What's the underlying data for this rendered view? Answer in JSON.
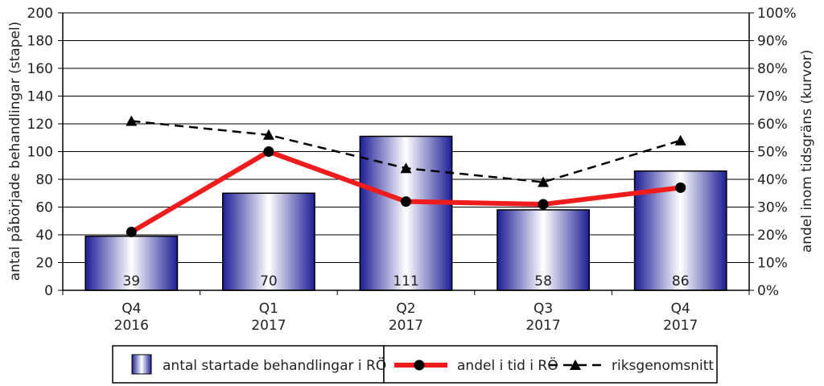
{
  "chart_data": {
    "type": "bar",
    "categories": [
      [
        "Q4",
        "2016"
      ],
      [
        "Q1",
        "2017"
      ],
      [
        "Q2",
        "2017"
      ],
      [
        "Q3",
        "2017"
      ],
      [
        "Q4",
        "2017"
      ]
    ],
    "ylabel": "antal påbörjade behandlingar (stapel)",
    "y2label": "andel inom tidsgräns (kurvor)",
    "ylim": [
      0,
      200
    ],
    "yticks": [
      "0",
      "20",
      "40",
      "60",
      "80",
      "100",
      "120",
      "140",
      "160",
      "180",
      "200"
    ],
    "y2lim": [
      0,
      100
    ],
    "y2ticks": [
      "0%",
      "10%",
      "20%",
      "30%",
      "40%",
      "50%",
      "60%",
      "70%",
      "80%",
      "90%",
      "100%"
    ],
    "grid": true,
    "legend_position": "bottom",
    "series": [
      {
        "name": "antal startade behandlingar i RÖ",
        "type": "bar",
        "axis": "left",
        "values": [
          39,
          70,
          111,
          58,
          86
        ],
        "labels": [
          "39",
          "70",
          "111",
          "58",
          "86"
        ],
        "color": "#2a2a9e"
      },
      {
        "name": "andel i tid i RÖ",
        "type": "line",
        "axis": "right",
        "values": [
          21,
          50,
          32,
          31,
          37
        ],
        "color": "#ee1c1c",
        "marker": "circle"
      },
      {
        "name": "riksgenomsnitt",
        "type": "line",
        "axis": "right",
        "style": "dashed",
        "values": [
          61,
          56,
          44,
          39,
          54
        ],
        "color": "#000000",
        "marker": "triangle"
      }
    ]
  }
}
